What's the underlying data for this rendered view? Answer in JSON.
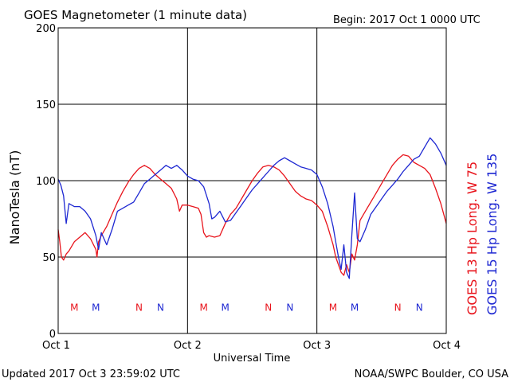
{
  "chart_data": {
    "type": "line",
    "title": "GOES Magnetometer (1 minute data)",
    "begin_label": "Begin:  2017 Oct 1 0000 UTC",
    "xlabel": "Universal Time",
    "ylabel": "NanoTesla (nT)",
    "updated": "Updated 2017 Oct  3 23:59:02 UTC",
    "credit": "NOAA/SWPC Boulder, CO USA",
    "x_unit": "hours since 2017 Oct 1 0000 UTC",
    "xlim": [
      0,
      72
    ],
    "ylim": [
      0,
      200
    ],
    "grid": true,
    "x_ticks": [
      {
        "x": 0,
        "label": "Oct 1"
      },
      {
        "x": 24,
        "label": "Oct 2"
      },
      {
        "x": 48,
        "label": "Oct 3"
      },
      {
        "x": 72,
        "label": "Oct 4"
      }
    ],
    "y_ticks": [
      0,
      50,
      100,
      150,
      200
    ],
    "legend_placement": "right side, vertical",
    "series": [
      {
        "name": "GOES 13 Hp  Long. W 75",
        "color": "#e8141c",
        "points": [
          [
            0,
            68
          ],
          [
            0.3,
            60
          ],
          [
            0.6,
            50
          ],
          [
            1,
            48
          ],
          [
            1.5,
            52
          ],
          [
            2,
            54
          ],
          [
            3,
            60
          ],
          [
            4,
            63
          ],
          [
            5,
            66
          ],
          [
            6,
            62
          ],
          [
            7,
            55
          ],
          [
            7.2,
            50
          ],
          [
            7.5,
            60
          ],
          [
            8,
            64
          ],
          [
            9,
            70
          ],
          [
            10,
            78
          ],
          [
            11,
            86
          ],
          [
            12,
            93
          ],
          [
            13,
            99
          ],
          [
            14,
            104
          ],
          [
            15,
            108
          ],
          [
            16,
            110
          ],
          [
            17,
            108
          ],
          [
            18,
            104
          ],
          [
            19,
            101
          ],
          [
            20,
            98
          ],
          [
            21,
            95
          ],
          [
            22,
            88
          ],
          [
            22.5,
            80
          ],
          [
            23,
            84
          ],
          [
            24,
            84
          ],
          [
            25,
            83
          ],
          [
            26,
            82
          ],
          [
            26.5,
            78
          ],
          [
            27,
            66
          ],
          [
            27.5,
            63
          ],
          [
            28,
            64
          ],
          [
            29,
            63
          ],
          [
            30,
            64
          ],
          [
            31,
            72
          ],
          [
            32,
            78
          ],
          [
            33,
            82
          ],
          [
            34,
            88
          ],
          [
            35,
            94
          ],
          [
            36,
            100
          ],
          [
            37,
            105
          ],
          [
            38,
            109
          ],
          [
            39,
            110
          ],
          [
            40,
            109
          ],
          [
            41,
            107
          ],
          [
            42,
            103
          ],
          [
            43,
            98
          ],
          [
            44,
            93
          ],
          [
            45,
            90
          ],
          [
            46,
            88
          ],
          [
            47,
            87
          ],
          [
            48,
            84
          ],
          [
            49,
            80
          ],
          [
            50,
            70
          ],
          [
            51,
            58
          ],
          [
            51.5,
            50
          ],
          [
            52,
            45
          ],
          [
            52.5,
            40
          ],
          [
            53,
            38
          ],
          [
            53.5,
            45
          ],
          [
            54,
            40
          ],
          [
            54.5,
            52
          ],
          [
            55,
            48
          ],
          [
            55.5,
            58
          ],
          [
            56,
            74
          ],
          [
            57,
            80
          ],
          [
            58,
            86
          ],
          [
            59,
            92
          ],
          [
            60,
            98
          ],
          [
            61,
            104
          ],
          [
            62,
            110
          ],
          [
            63,
            114
          ],
          [
            64,
            117
          ],
          [
            65,
            116
          ],
          [
            66,
            112
          ],
          [
            67,
            110
          ],
          [
            68,
            108
          ],
          [
            69,
            104
          ],
          [
            70,
            95
          ],
          [
            71,
            85
          ],
          [
            72,
            72
          ]
        ]
      },
      {
        "name": "GOES 15 Hp  Long. W 135",
        "color": "#1e28d2",
        "points": [
          [
            0,
            101
          ],
          [
            0.5,
            97
          ],
          [
            1,
            90
          ],
          [
            1.5,
            72
          ],
          [
            2,
            85
          ],
          [
            3,
            83
          ],
          [
            4,
            83
          ],
          [
            5,
            80
          ],
          [
            6,
            75
          ],
          [
            7,
            64
          ],
          [
            7.5,
            55
          ],
          [
            8,
            66
          ],
          [
            9,
            58
          ],
          [
            10,
            68
          ],
          [
            11,
            80
          ],
          [
            12,
            82
          ],
          [
            13,
            84
          ],
          [
            14,
            86
          ],
          [
            15,
            92
          ],
          [
            16,
            98
          ],
          [
            17,
            101
          ],
          [
            18,
            104
          ],
          [
            19,
            107
          ],
          [
            20,
            110
          ],
          [
            21,
            108
          ],
          [
            22,
            110
          ],
          [
            23,
            107
          ],
          [
            24,
            103
          ],
          [
            25,
            101
          ],
          [
            26,
            100
          ],
          [
            27,
            96
          ],
          [
            28,
            85
          ],
          [
            28.5,
            75
          ],
          [
            29,
            76
          ],
          [
            30,
            80
          ],
          [
            31,
            73
          ],
          [
            32,
            74
          ],
          [
            33,
            79
          ],
          [
            34,
            84
          ],
          [
            35,
            89
          ],
          [
            36,
            94
          ],
          [
            37,
            98
          ],
          [
            38,
            102
          ],
          [
            39,
            106
          ],
          [
            40,
            110
          ],
          [
            41,
            113
          ],
          [
            42,
            115
          ],
          [
            43,
            113
          ],
          [
            44,
            111
          ],
          [
            45,
            109
          ],
          [
            46,
            108
          ],
          [
            47,
            107
          ],
          [
            48,
            104
          ],
          [
            49,
            96
          ],
          [
            50,
            85
          ],
          [
            51,
            70
          ],
          [
            51.5,
            60
          ],
          [
            52,
            50
          ],
          [
            52.5,
            42
          ],
          [
            53,
            58
          ],
          [
            53.5,
            40
          ],
          [
            54,
            36
          ],
          [
            54.5,
            65
          ],
          [
            55,
            92
          ],
          [
            55.5,
            62
          ],
          [
            56,
            60
          ],
          [
            57,
            68
          ],
          [
            58,
            78
          ],
          [
            59,
            83
          ],
          [
            60,
            88
          ],
          [
            61,
            93
          ],
          [
            62,
            97
          ],
          [
            63,
            101
          ],
          [
            64,
            106
          ],
          [
            65,
            110
          ],
          [
            66,
            114
          ],
          [
            67,
            116
          ],
          [
            68,
            122
          ],
          [
            69,
            128
          ],
          [
            70,
            124
          ],
          [
            71,
            118
          ],
          [
            72,
            110
          ]
        ]
      }
    ],
    "markers": [
      {
        "label": "M",
        "x": 3,
        "series": 0
      },
      {
        "label": "M",
        "x": 7,
        "series": 1
      },
      {
        "label": "N",
        "x": 15,
        "series": 0
      },
      {
        "label": "N",
        "x": 19,
        "series": 1
      },
      {
        "label": "M",
        "x": 27,
        "series": 0
      },
      {
        "label": "M",
        "x": 31,
        "series": 1
      },
      {
        "label": "N",
        "x": 39,
        "series": 0
      },
      {
        "label": "N",
        "x": 43,
        "series": 1
      },
      {
        "label": "M",
        "x": 51,
        "series": 0
      },
      {
        "label": "M",
        "x": 55,
        "series": 1
      },
      {
        "label": "N",
        "x": 63,
        "series": 0
      },
      {
        "label": "N",
        "x": 67,
        "series": 1
      }
    ]
  }
}
